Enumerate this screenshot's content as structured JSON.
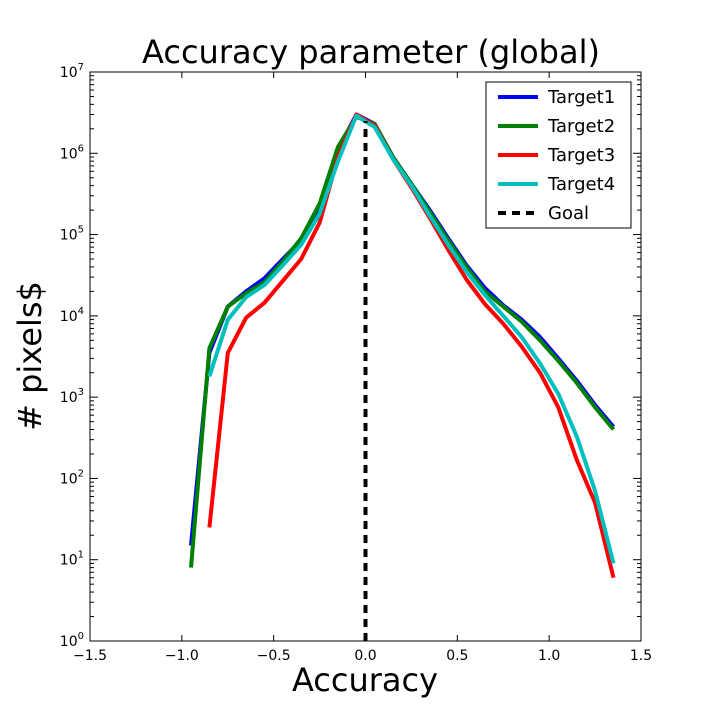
{
  "chart_data": {
    "type": "line",
    "title": "Accuracy parameter (global)",
    "xlabel": "Accuracy",
    "ylabel": "# pixels$",
    "xlim": [
      -1.5,
      1.5
    ],
    "ylim": [
      1,
      10000000
    ],
    "yscale": "log",
    "xticks": [
      "−1.5",
      "−1.0",
      "−0.5",
      "0.0",
      "0.5",
      "1.0",
      "1.5"
    ],
    "yticks": [
      {
        "base": "10",
        "exp": "0"
      },
      {
        "base": "10",
        "exp": "1"
      },
      {
        "base": "10",
        "exp": "2"
      },
      {
        "base": "10",
        "exp": "3"
      },
      {
        "base": "10",
        "exp": "4"
      },
      {
        "base": "10",
        "exp": "5"
      },
      {
        "base": "10",
        "exp": "6"
      },
      {
        "base": "10",
        "exp": "7"
      }
    ],
    "grid": false,
    "legend_position": "top-right",
    "series": [
      {
        "name": "Target1",
        "color": "#0000ff",
        "x": [
          -0.95,
          -0.85,
          -0.75,
          -0.65,
          -0.55,
          -0.45,
          -0.35,
          -0.25,
          -0.15,
          -0.05,
          0.05,
          0.15,
          0.25,
          0.35,
          0.45,
          0.55,
          0.65,
          0.75,
          0.85,
          0.95,
          1.05,
          1.15,
          1.25,
          1.35
        ],
        "y": [
          15,
          3500,
          13000,
          20000,
          29000,
          50000,
          85000,
          220000,
          1100000,
          3000000,
          2300000,
          900000,
          420000,
          200000,
          90000,
          42000,
          22000,
          13500,
          9000,
          5500,
          3000,
          1600,
          800,
          430
        ]
      },
      {
        "name": "Target2",
        "color": "#008000",
        "x": [
          -0.95,
          -0.85,
          -0.75,
          -0.65,
          -0.55,
          -0.45,
          -0.35,
          -0.25,
          -0.15,
          -0.05,
          0.05,
          0.15,
          0.25,
          0.35,
          0.45,
          0.55,
          0.65,
          0.75,
          0.85,
          0.95,
          1.05,
          1.15,
          1.25,
          1.35
        ],
        "y": [
          8,
          4000,
          13000,
          19000,
          26000,
          47000,
          90000,
          240000,
          1200000,
          2800000,
          2300000,
          900000,
          420000,
          190000,
          85000,
          40000,
          20000,
          13000,
          8500,
          5000,
          2800,
          1500,
          750,
          400
        ]
      },
      {
        "name": "Target3",
        "color": "#ff0000",
        "x": [
          -0.85,
          -0.75,
          -0.65,
          -0.55,
          -0.45,
          -0.35,
          -0.25,
          -0.15,
          -0.05,
          0.05,
          0.15,
          0.25,
          0.35,
          0.45,
          0.55,
          0.65,
          0.75,
          0.85,
          0.95,
          1.05,
          1.15,
          1.25,
          1.35
        ],
        "y": [
          25,
          3500,
          9500,
          14500,
          27000,
          50000,
          140000,
          900000,
          3000000,
          2200000,
          850000,
          380000,
          160000,
          65000,
          28000,
          14000,
          8000,
          4200,
          2000,
          750,
          170,
          50,
          6
        ]
      },
      {
        "name": "Target4",
        "color": "#00bfbf",
        "x": [
          -0.85,
          -0.75,
          -0.65,
          -0.55,
          -0.45,
          -0.35,
          -0.25,
          -0.15,
          -0.05,
          0.05,
          0.15,
          0.25,
          0.35,
          0.45,
          0.55,
          0.65,
          0.75,
          0.85,
          0.95,
          1.05,
          1.15,
          1.25,
          1.35
        ],
        "y": [
          1800,
          9000,
          17000,
          24000,
          42000,
          75000,
          180000,
          800000,
          2900000,
          2100000,
          850000,
          400000,
          170000,
          75000,
          35000,
          18000,
          10000,
          5500,
          2600,
          1100,
          330,
          70,
          9
        ]
      }
    ],
    "goal": {
      "name": "Goal",
      "x": 0.0,
      "y_range": [
        1,
        2500000
      ],
      "color": "#000000"
    }
  }
}
